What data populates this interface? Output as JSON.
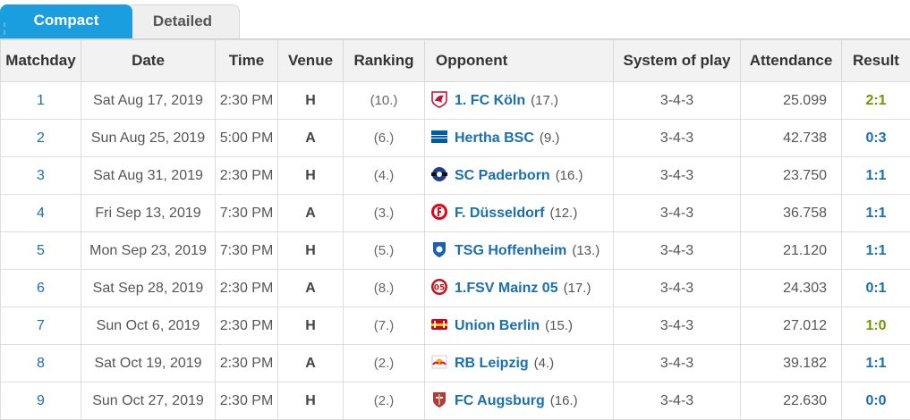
{
  "tabs": {
    "active": "Compact",
    "inactive": "Detailed"
  },
  "columns": {
    "matchday": "Matchday",
    "date": "Date",
    "time": "Time",
    "venue": "Venue",
    "ranking": "Ranking",
    "opponent": "Opponent",
    "system": "System of play",
    "attendance": "Attendance",
    "result": "Result"
  },
  "colors": {
    "accent": "#1a9ee0",
    "link": "#1a6fb0",
    "win": "#6a9a00"
  },
  "rows": [
    {
      "matchday": "1",
      "date": "Sat Aug 17, 2019",
      "time": "2:30 PM",
      "venue": "H",
      "ranking": "(10.)",
      "opponent": "1. FC Köln",
      "opponent_rank": "(17.)",
      "crest": "koeln-crest-icon",
      "system": "3-4-3",
      "attendance": "25.099",
      "result": "2:1",
      "outcome": "win"
    },
    {
      "matchday": "2",
      "date": "Sun Aug 25, 2019",
      "time": "5:00 PM",
      "venue": "A",
      "ranking": "(6.)",
      "opponent": "Hertha BSC",
      "opponent_rank": "(9.)",
      "crest": "hertha-crest-icon",
      "system": "3-4-3",
      "attendance": "42.738",
      "result": "0:3",
      "outcome": "other"
    },
    {
      "matchday": "3",
      "date": "Sat Aug 31, 2019",
      "time": "2:30 PM",
      "venue": "H",
      "ranking": "(4.)",
      "opponent": "SC Paderborn",
      "opponent_rank": "(16.)",
      "crest": "paderborn-crest-icon",
      "system": "3-4-3",
      "attendance": "23.750",
      "result": "1:1",
      "outcome": "other"
    },
    {
      "matchday": "4",
      "date": "Fri Sep 13, 2019",
      "time": "7:30 PM",
      "venue": "A",
      "ranking": "(3.)",
      "opponent": "F. Düsseldorf",
      "opponent_rank": "(12.)",
      "crest": "duesseldorf-crest-icon",
      "system": "3-4-3",
      "attendance": "36.758",
      "result": "1:1",
      "outcome": "other"
    },
    {
      "matchday": "5",
      "date": "Mon Sep 23, 2019",
      "time": "7:30 PM",
      "venue": "H",
      "ranking": "(5.)",
      "opponent": "TSG Hoffenheim",
      "opponent_rank": "(13.)",
      "crest": "hoffenheim-crest-icon",
      "system": "3-4-3",
      "attendance": "21.120",
      "result": "1:1",
      "outcome": "other"
    },
    {
      "matchday": "6",
      "date": "Sat Sep 28, 2019",
      "time": "2:30 PM",
      "venue": "A",
      "ranking": "(8.)",
      "opponent": "1.FSV Mainz 05",
      "opponent_rank": "(17.)",
      "crest": "mainz-crest-icon",
      "system": "3-4-3",
      "attendance": "24.303",
      "result": "0:1",
      "outcome": "other"
    },
    {
      "matchday": "7",
      "date": "Sun Oct 6, 2019",
      "time": "2:30 PM",
      "venue": "H",
      "ranking": "(7.)",
      "opponent": "Union Berlin",
      "opponent_rank": "(15.)",
      "crest": "union-crest-icon",
      "system": "3-4-3",
      "attendance": "27.012",
      "result": "1:0",
      "outcome": "win"
    },
    {
      "matchday": "8",
      "date": "Sat Oct 19, 2019",
      "time": "2:30 PM",
      "venue": "A",
      "ranking": "(2.)",
      "opponent": "RB Leipzig",
      "opponent_rank": "(4.)",
      "crest": "leipzig-crest-icon",
      "system": "3-4-3",
      "attendance": "39.182",
      "result": "1:1",
      "outcome": "other"
    },
    {
      "matchday": "9",
      "date": "Sun Oct 27, 2019",
      "time": "2:30 PM",
      "venue": "H",
      "ranking": "(2.)",
      "opponent": "FC Augsburg",
      "opponent_rank": "(16.)",
      "crest": "augsburg-crest-icon",
      "system": "3-4-3",
      "attendance": "22.630",
      "result": "0:0",
      "outcome": "other"
    }
  ]
}
